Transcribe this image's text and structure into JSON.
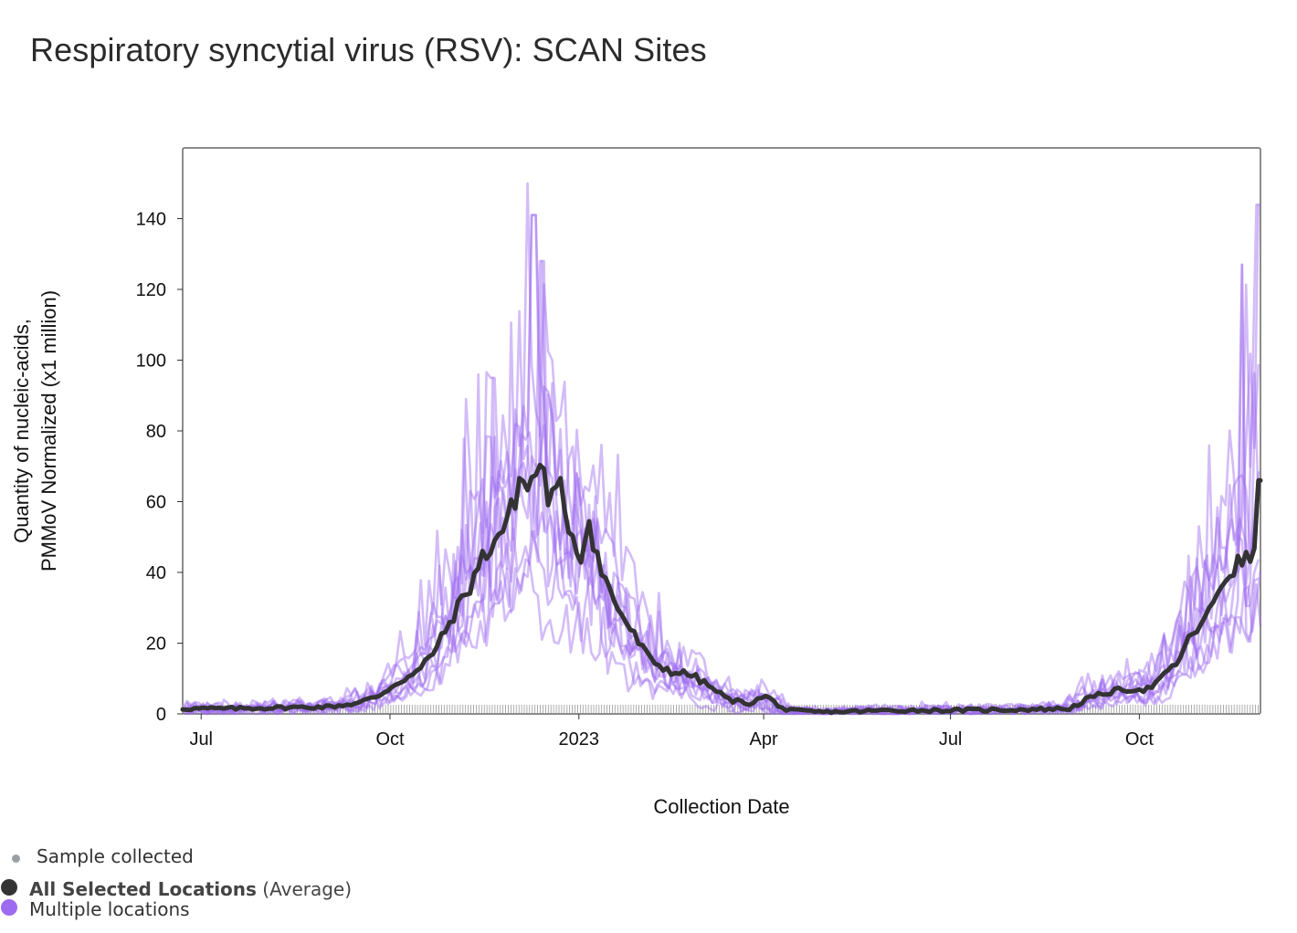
{
  "title": "Respiratory syncytial virus (RSV): SCAN Sites",
  "colors": {
    "average": "#333333",
    "locations": "#9d6bf0",
    "sample_tick": "#999999",
    "sample_dot": "#9aa0a6"
  },
  "legend": {
    "sample": "Sample collected",
    "average_bold": "All Selected Locations",
    "average_paren": "(Average)",
    "multiple": "Multiple locations"
  },
  "chart_data": {
    "type": "line",
    "xlabel": "Collection Date",
    "ylabel_line1": "Quantity of nucleic-acids,",
    "ylabel_line2": "PMMoV Normalized (x1 million)",
    "xlim": [
      "2022-06-22",
      "2023-11-29"
    ],
    "ylim": [
      0,
      160
    ],
    "y_ticks": [
      0,
      20,
      40,
      60,
      80,
      100,
      120,
      140
    ],
    "x_ticks": [
      {
        "date": "2022-07-01",
        "label": "Jul"
      },
      {
        "date": "2022-10-01",
        "label": "Oct"
      },
      {
        "date": "2023-01-01",
        "label": "2023"
      },
      {
        "date": "2023-04-01",
        "label": "Apr"
      },
      {
        "date": "2023-07-01",
        "label": "Jul"
      },
      {
        "date": "2023-10-01",
        "label": "Oct"
      }
    ],
    "average_series": {
      "name": "All Selected Locations (Average)",
      "points": [
        [
          "2022-06-22",
          1.5
        ],
        [
          "2022-07-15",
          1.5
        ],
        [
          "2022-08-10",
          1.8
        ],
        [
          "2022-09-01",
          2
        ],
        [
          "2022-09-15",
          3
        ],
        [
          "2022-09-25",
          5
        ],
        [
          "2022-10-05",
          9
        ],
        [
          "2022-10-15",
          12
        ],
        [
          "2022-10-25",
          20
        ],
        [
          "2022-11-01",
          28
        ],
        [
          "2022-11-08",
          35
        ],
        [
          "2022-11-15",
          44
        ],
        [
          "2022-11-22",
          50
        ],
        [
          "2022-11-28",
          55
        ],
        [
          "2022-12-03",
          66
        ],
        [
          "2022-12-08",
          64
        ],
        [
          "2022-12-13",
          71
        ],
        [
          "2022-12-18",
          60
        ],
        [
          "2022-12-23",
          63
        ],
        [
          "2022-12-28",
          52
        ],
        [
          "2023-01-02",
          44
        ],
        [
          "2023-01-05",
          56
        ],
        [
          "2023-01-12",
          40
        ],
        [
          "2023-01-20",
          30
        ],
        [
          "2023-01-28",
          22
        ],
        [
          "2023-02-05",
          15
        ],
        [
          "2023-02-15",
          12
        ],
        [
          "2023-02-25",
          11
        ],
        [
          "2023-03-05",
          8
        ],
        [
          "2023-03-15",
          4
        ],
        [
          "2023-03-25",
          3
        ],
        [
          "2023-04-02",
          5
        ],
        [
          "2023-04-12",
          1
        ],
        [
          "2023-05-01",
          0.5
        ],
        [
          "2023-06-01",
          1
        ],
        [
          "2023-07-01",
          1
        ],
        [
          "2023-08-01",
          1.2
        ],
        [
          "2023-08-28",
          1.5
        ],
        [
          "2023-09-05",
          4
        ],
        [
          "2023-09-15",
          6
        ],
        [
          "2023-09-25",
          7
        ],
        [
          "2023-10-05",
          7
        ],
        [
          "2023-10-12",
          10
        ],
        [
          "2023-10-20",
          15
        ],
        [
          "2023-10-27",
          23
        ],
        [
          "2023-11-03",
          27
        ],
        [
          "2023-11-10",
          37
        ],
        [
          "2023-11-17",
          42
        ],
        [
          "2023-11-24",
          44
        ],
        [
          "2023-11-27",
          50
        ],
        [
          "2023-11-29",
          66
        ]
      ]
    },
    "location_series": {
      "name": "Multiple locations",
      "count": 10,
      "peaks": [
        {
          "date": "2022-12-10",
          "value": 141
        },
        {
          "date": "2022-12-14",
          "value": 128
        },
        {
          "date": "2022-11-20",
          "value": 95
        },
        {
          "date": "2023-11-20",
          "value": 127
        },
        {
          "date": "2023-11-28",
          "value": 144
        }
      ]
    }
  }
}
